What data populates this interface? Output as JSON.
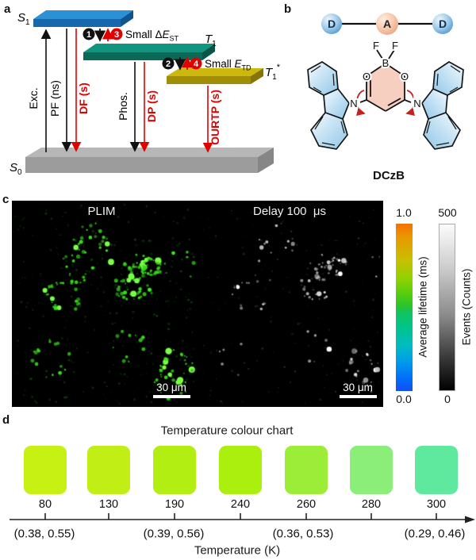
{
  "panels": {
    "a": "a",
    "b": "b",
    "c": "c",
    "d": "d"
  },
  "panel_a": {
    "states": {
      "s1": {
        "base": "S",
        "sub": "1"
      },
      "t1": {
        "base": "T",
        "sub": "1"
      },
      "t1_star": {
        "base": "T",
        "sub": "1",
        "sup": "*"
      },
      "s0": {
        "base": "S",
        "sub": "0"
      }
    },
    "arrows": {
      "exc": "Exc.",
      "pf": "PF (ns)",
      "df": "DF (s)",
      "phos": "Phos.",
      "dp": "DP (s)",
      "ourtp": "OURTP (s)"
    },
    "steps": {
      "n1": "1",
      "n2": "2",
      "n3": "3",
      "n4": "4"
    },
    "small_est": {
      "prefix": "Small Δ",
      "var": "E",
      "sub": "ST"
    },
    "small_etd": {
      "prefix": "Small ",
      "var": "E",
      "sub": "TD"
    },
    "colors": {
      "red": "#e00000",
      "black": "#111111"
    }
  },
  "panel_b": {
    "dad": {
      "d1": "D",
      "a": "A",
      "d2": "D"
    },
    "atoms": {
      "f1": "F",
      "f2": "F",
      "b": "B",
      "o1": "O",
      "o2": "O",
      "n1": "N",
      "n2": "N"
    },
    "molecule_name": "DCzB"
  },
  "panel_c": {
    "left_title": "PLIM",
    "right_title": "Delay 100  μs",
    "scalebar_left": "30 μm",
    "scalebar_right": "30 μm",
    "lifetime_bar": {
      "max": "1.0",
      "min": "0.0",
      "label": "Average lifetime (ms)"
    },
    "events_bar": {
      "max": "500",
      "min": "0",
      "label": "Events (Counts)"
    },
    "render": {
      "seed": 42,
      "clusters": 13,
      "left_color": "green",
      "right_color": "gray"
    }
  },
  "panel_d": {
    "title": "Temperature colour chart",
    "axis_label": "Temperature (K)",
    "swatches": [
      {
        "temp": "80",
        "color": "#c7f013"
      },
      {
        "temp": "130",
        "color": "#c1ef15"
      },
      {
        "temp": "190",
        "color": "#b3ee13"
      },
      {
        "temp": "240",
        "color": "#abef0f"
      },
      {
        "temp": "260",
        "color": "#9bed38"
      },
      {
        "temp": "280",
        "color": "#8aee79"
      },
      {
        "temp": "300",
        "color": "#5ee99e"
      }
    ],
    "coords": [
      {
        "text": "(0.38, 0.55)"
      },
      {
        "text": "(0.39, 0.56)"
      },
      {
        "text": "(0.36, 0.53)"
      },
      {
        "text": "(0.29, 0.46)"
      }
    ]
  }
}
